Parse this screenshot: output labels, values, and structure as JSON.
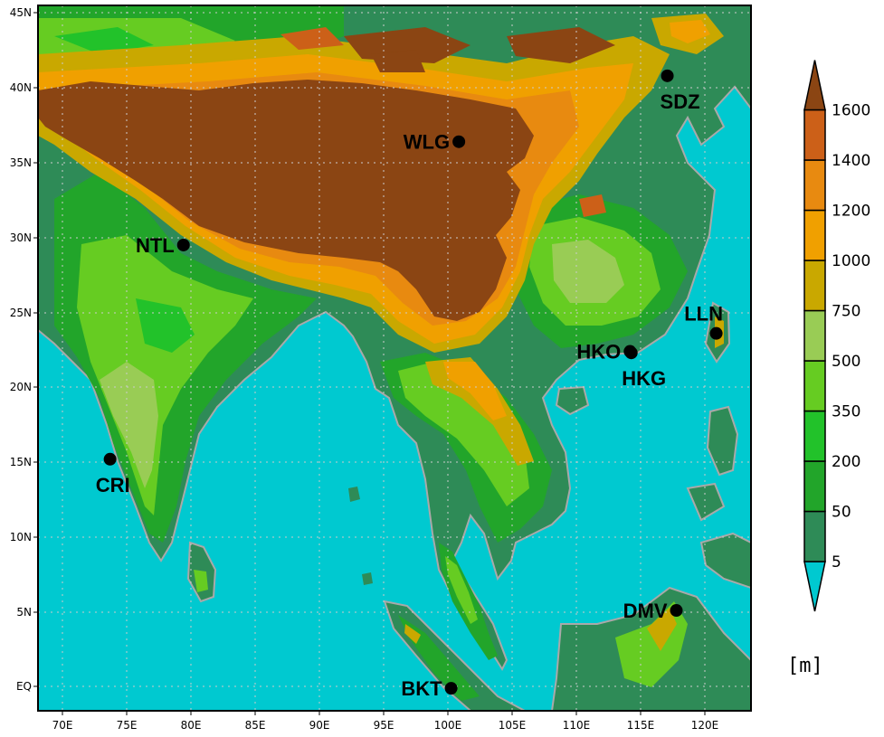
{
  "map": {
    "lon_ticks": [
      "70E",
      "75E",
      "80E",
      "85E",
      "90E",
      "95E",
      "100E",
      "105E",
      "110E",
      "115E",
      "120E"
    ],
    "lat_ticks": [
      "EQ",
      "5N",
      "10N",
      "15N",
      "20N",
      "25N",
      "30N",
      "35N",
      "40N",
      "45N"
    ],
    "lon_range": [
      68.2,
      123.6
    ],
    "lat_range": [
      -1.7,
      45.4
    ],
    "gridlines": "dotted",
    "ocean_color": "#00c9d0",
    "coast_color": "#a9a9a9"
  },
  "stations": [
    {
      "code": "WLG",
      "lon": 100.9,
      "lat": 36.3,
      "label_side": "left"
    },
    {
      "code": "SDZ",
      "lon": 117.1,
      "lat": 40.7,
      "label_side": "below"
    },
    {
      "code": "NTL",
      "lon": 79.5,
      "lat": 29.4,
      "label_side": "left"
    },
    {
      "code": "LLN",
      "lon": 120.9,
      "lat": 23.5,
      "label_side": "above"
    },
    {
      "code": "HKO",
      "lon": 114.2,
      "lat": 22.3,
      "label_side": "left"
    },
    {
      "code": "HKG",
      "lon": 114.3,
      "lat": 22.2,
      "label_side": "below"
    },
    {
      "code": "CRI",
      "lon": 73.8,
      "lat": 15.1,
      "label_side": "below"
    },
    {
      "code": "DMV",
      "lon": 117.8,
      "lat": 5.0,
      "label_side": "left"
    },
    {
      "code": "BKT",
      "lon": 100.3,
      "lat": -0.2,
      "label_side": "left"
    }
  ],
  "colorbar": {
    "labels": [
      "5",
      "50",
      "200",
      "350",
      "500",
      "750",
      "1000",
      "1200",
      "1400",
      "1600"
    ],
    "colors": [
      "#00c9d0",
      "#2e8b57",
      "#22a52a",
      "#22c22a",
      "#66cc22",
      "#99cc55",
      "#c9a800",
      "#f0a000",
      "#e88a10",
      "#cc6018",
      "#8b4513"
    ],
    "unit": "[m]"
  }
}
